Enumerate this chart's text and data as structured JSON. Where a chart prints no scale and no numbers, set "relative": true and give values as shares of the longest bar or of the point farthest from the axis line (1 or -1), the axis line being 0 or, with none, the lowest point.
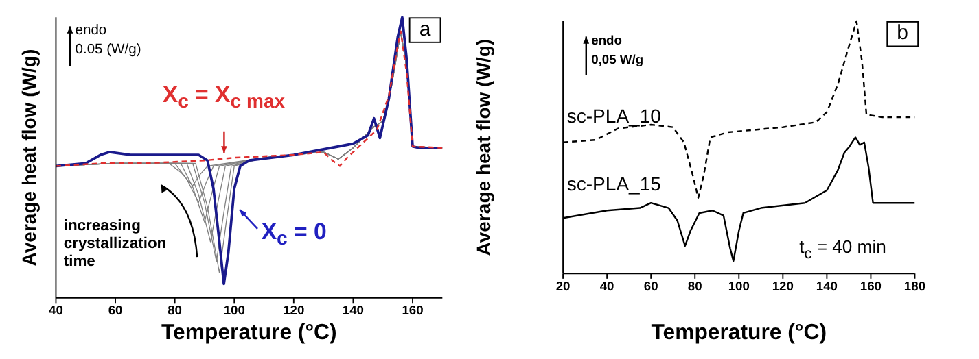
{
  "chart_data": [
    {
      "type": "line",
      "xlabel": "Temperature (°C)",
      "ylabel": "Average heat flow (W/g)",
      "relative": true,
      "tick_labels": "x",
      "legend": false,
      "grid": false,
      "xlim": [
        40,
        170
      ],
      "xticks": [
        40,
        60,
        80,
        100,
        120,
        140,
        160
      ],
      "annotations": [
        "endo",
        "0.05 (W/g)",
        "X$_{c}$ = X$_{c max}$",
        "X$_{c}$ = 0",
        "increasing crystallization time",
        "a"
      ],
      "series": [
        {
          "color": "#808080",
          "x": [
            40,
            60,
            78,
            82,
            86,
            88.5,
            91,
            110,
            130,
            135,
            140,
            147,
            150,
            153,
            156,
            158,
            160,
            170
          ],
          "values": [
            0.47,
            0.48,
            0.48,
            0.448,
            0.4,
            0.44,
            0.47,
            0.5,
            0.52,
            0.495,
            0.535,
            0.61,
            0.63,
            0.76,
            0.95,
            0.82,
            0.54,
            0.535
          ]
        },
        {
          "color": "#808080",
          "x": [
            40,
            60,
            80,
            84,
            88,
            90.5,
            93,
            110,
            130,
            135,
            140,
            147,
            150,
            153,
            156,
            158,
            160,
            170
          ],
          "values": [
            0.47,
            0.48,
            0.48,
            0.424,
            0.34,
            0.41,
            0.47,
            0.5,
            0.52,
            0.495,
            0.535,
            0.61,
            0.63,
            0.76,
            0.95,
            0.82,
            0.54,
            0.535
          ]
        },
        {
          "color": "#808080",
          "x": [
            40,
            60,
            82,
            86,
            90,
            92.5,
            95,
            110,
            130,
            135,
            140,
            147,
            150,
            153,
            156,
            158,
            160,
            170
          ],
          "values": [
            0.47,
            0.48,
            0.48,
            0.396,
            0.27,
            0.375,
            0.47,
            0.5,
            0.52,
            0.495,
            0.535,
            0.61,
            0.63,
            0.76,
            0.95,
            0.82,
            0.54,
            0.535
          ]
        },
        {
          "color": "#808080",
          "x": [
            40,
            60,
            84,
            88,
            92,
            94.5,
            97,
            110,
            130,
            135,
            140,
            147,
            150,
            153,
            156,
            158,
            160,
            170
          ],
          "values": [
            0.47,
            0.48,
            0.48,
            0.368,
            0.2,
            0.34,
            0.47,
            0.5,
            0.52,
            0.495,
            0.535,
            0.61,
            0.63,
            0.76,
            0.95,
            0.82,
            0.54,
            0.535
          ]
        },
        {
          "color": "#808080",
          "x": [
            40,
            60,
            86,
            90,
            94,
            96.5,
            99,
            110,
            130,
            135,
            140,
            147,
            150,
            153,
            156,
            158,
            160,
            170
          ],
          "values": [
            0.47,
            0.48,
            0.48,
            0.34,
            0.13,
            0.305,
            0.47,
            0.5,
            0.52,
            0.495,
            0.535,
            0.61,
            0.63,
            0.76,
            0.95,
            0.82,
            0.54,
            0.535
          ]
        },
        {
          "color": "#808080",
          "x": [
            40,
            60,
            87,
            91,
            95,
            97.5,
            100,
            110,
            130,
            135,
            140,
            147,
            150,
            153,
            156,
            158,
            160,
            170
          ],
          "values": [
            0.47,
            0.48,
            0.48,
            0.324,
            0.09,
            0.285,
            0.47,
            0.5,
            0.52,
            0.495,
            0.535,
            0.61,
            0.63,
            0.76,
            0.95,
            0.82,
            0.54,
            0.535
          ]
        },
        {
          "color": "#1a1a8c",
          "x": [
            40,
            50,
            55,
            58,
            65,
            80,
            88,
            91,
            93,
            95,
            96.5,
            98,
            100,
            102,
            105,
            120,
            130,
            140,
            145,
            147,
            149,
            152,
            155,
            156.5,
            158,
            160,
            162,
            170
          ],
          "values": [
            0.47,
            0.48,
            0.51,
            0.52,
            0.51,
            0.51,
            0.51,
            0.49,
            0.39,
            0.2,
            0.05,
            0.16,
            0.39,
            0.47,
            0.49,
            0.51,
            0.53,
            0.55,
            0.58,
            0.64,
            0.57,
            0.71,
            0.93,
            1,
            0.85,
            0.54,
            0.535,
            0.535
          ]
        },
        {
          "color": "#e03030",
          "line_style": "dashed",
          "x": [
            40,
            55,
            70,
            90,
            100,
            120,
            130,
            133,
            135.5,
            138,
            142,
            145,
            148,
            152,
            155,
            156,
            158,
            160,
            170
          ],
          "values": [
            0.47,
            0.48,
            0.48,
            0.49,
            0.5,
            0.51,
            0.52,
            0.49,
            0.47,
            0.5,
            0.54,
            0.57,
            0.6,
            0.72,
            0.9,
            0.95,
            0.8,
            0.54,
            0.535
          ]
        }
      ]
    },
    {
      "type": "line",
      "xlabel": "Temperature (°C)",
      "ylabel": "Average heat flow (W/g)",
      "relative": true,
      "tick_labels": "x",
      "legend": false,
      "grid": false,
      "xlim": [
        20,
        180
      ],
      "xticks": [
        20,
        40,
        60,
        80,
        100,
        120,
        140,
        160,
        180
      ],
      "annotations": [
        "endo",
        "0,05 W/g",
        "t$_{c}$ = 40 min",
        "b"
      ],
      "series": [
        {
          "name": "sc-PLA_10",
          "color": "#000000",
          "line_style": "dashed",
          "x": [
            20,
            35,
            45,
            60,
            70,
            75,
            79,
            81.5,
            84,
            87,
            95,
            120,
            135,
            140,
            145,
            150,
            153.5,
            156,
            158,
            165,
            180
          ],
          "values": [
            0.52,
            0.53,
            0.575,
            0.59,
            0.58,
            0.52,
            0.39,
            0.3,
            0.39,
            0.54,
            0.56,
            0.58,
            0.6,
            0.64,
            0.75,
            0.9,
            1,
            0.84,
            0.63,
            0.62,
            0.62
          ]
        },
        {
          "name": "sc-PLA_15",
          "color": "#000000",
          "line_style": "solid",
          "x": [
            20,
            40,
            55,
            60,
            68,
            72,
            75.5,
            78,
            82,
            88,
            93,
            96,
            97.5,
            100,
            102,
            110,
            130,
            140,
            145,
            148,
            150,
            153,
            155,
            157,
            159,
            161,
            180
          ],
          "values": [
            0.22,
            0.25,
            0.26,
            0.28,
            0.26,
            0.21,
            0.11,
            0.17,
            0.24,
            0.25,
            0.23,
            0.1,
            0.05,
            0.17,
            0.24,
            0.26,
            0.28,
            0.33,
            0.41,
            0.48,
            0.5,
            0.54,
            0.51,
            0.52,
            0.42,
            0.28,
            0.28
          ]
        }
      ]
    }
  ]
}
